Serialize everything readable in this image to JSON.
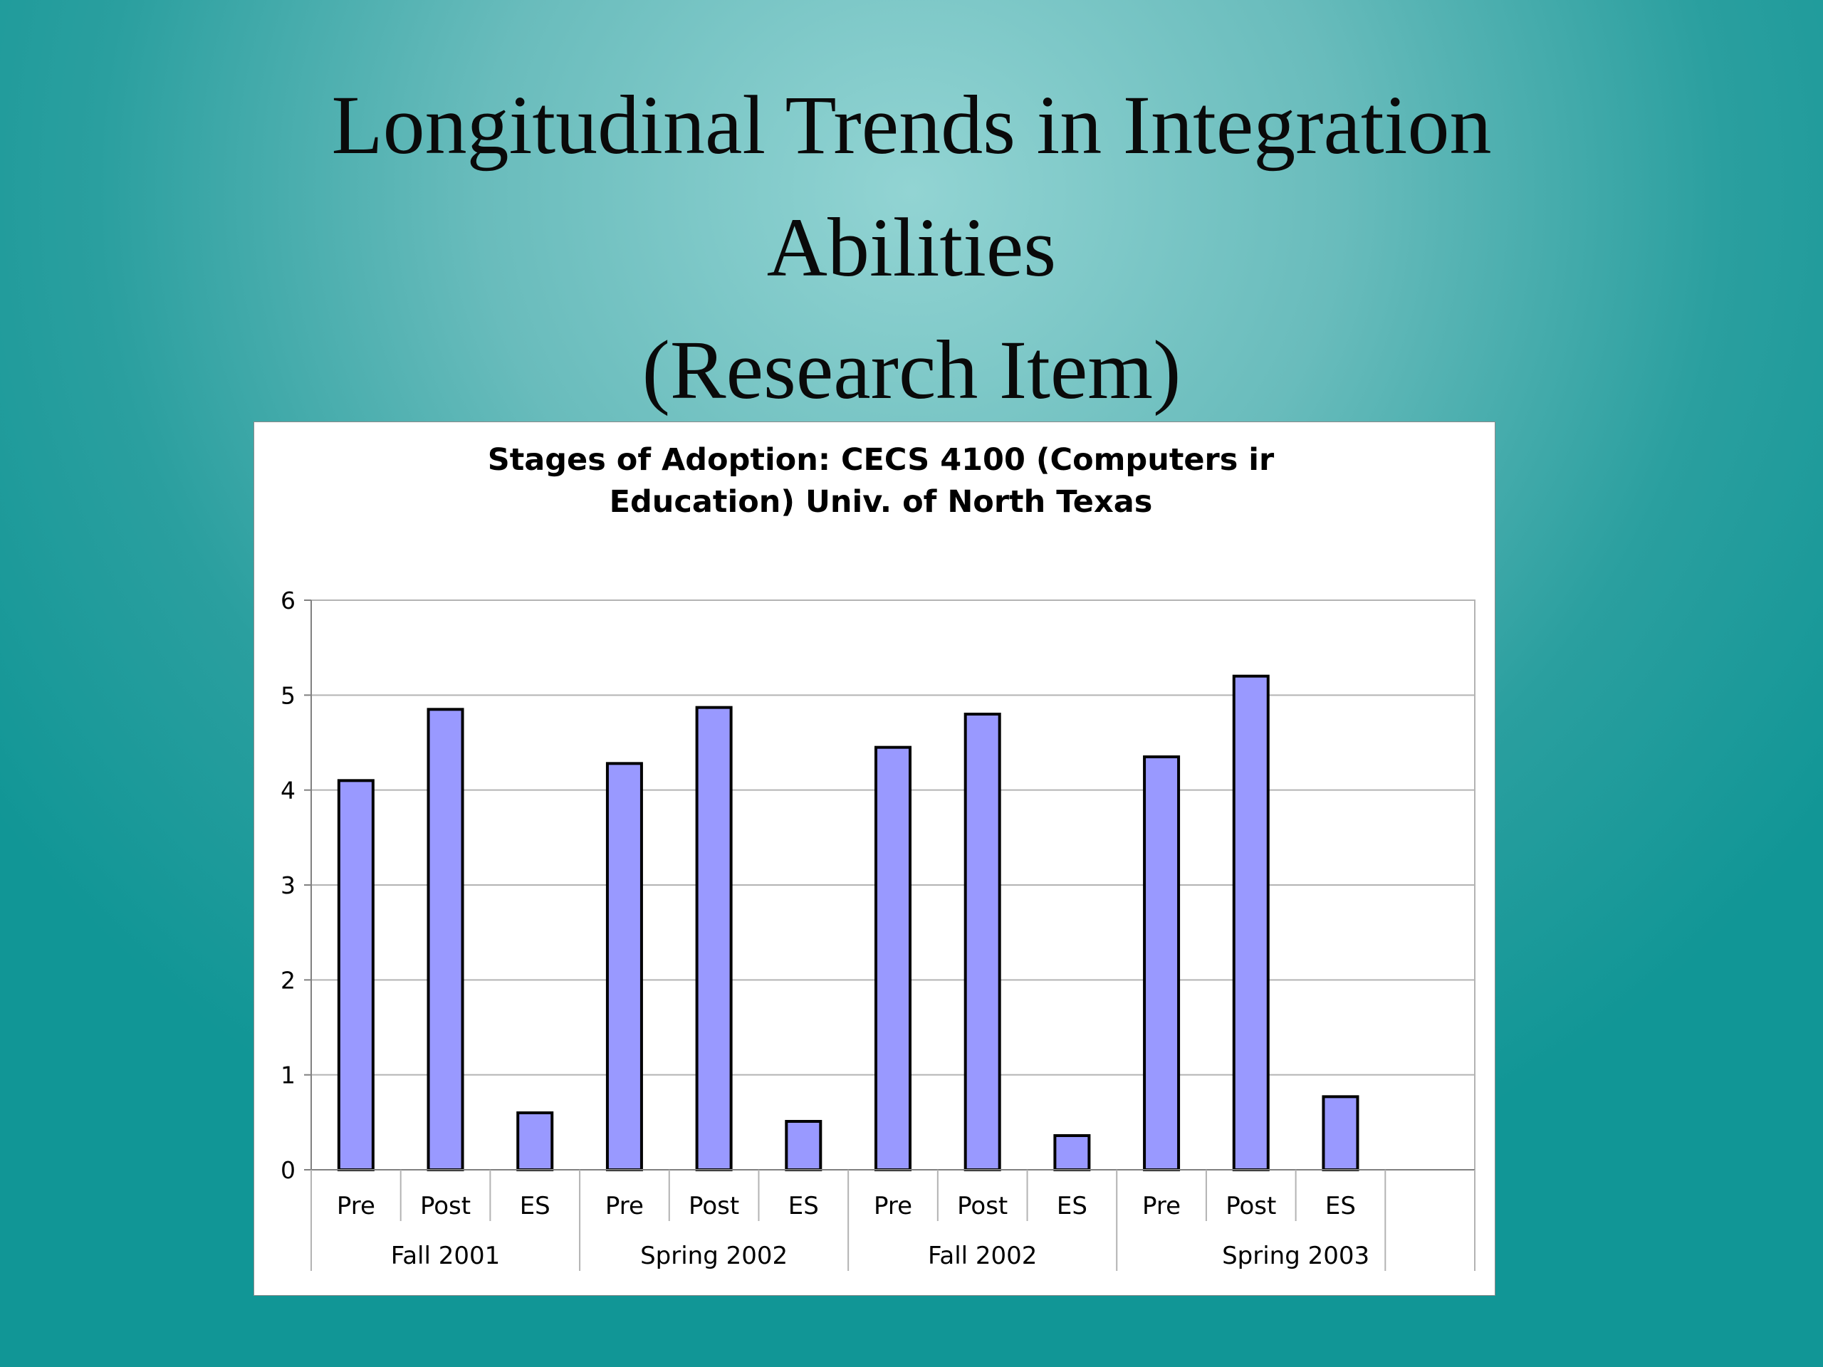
{
  "slide": {
    "title_line1": "Longitudinal Trends in Integration",
    "title_line2": "Abilities",
    "title_line3": "(Research Item)"
  },
  "colors": {
    "bar": "#9999ff",
    "bar_stroke": "#000000",
    "grid": "#b3b3b3",
    "axis": "#808080"
  },
  "chart_data": {
    "type": "bar",
    "title_line1": "Stages of Adoption: CECS 4100 (Computers ir",
    "title_line2": "Education) Univ. of North Texas",
    "xlabel": "",
    "ylabel": "",
    "ylim": [
      0,
      6
    ],
    "yticks": [
      0,
      1,
      2,
      3,
      4,
      5,
      6
    ],
    "grid": true,
    "legend": false,
    "groups": [
      "Fall 2001",
      "Spring 2002",
      "Fall 2002",
      "Spring 2003"
    ],
    "subcategories": [
      "Pre",
      "Post",
      "ES"
    ],
    "values": [
      [
        4.1,
        4.85,
        0.6
      ],
      [
        4.28,
        4.87,
        0.51
      ],
      [
        4.45,
        4.8,
        0.36
      ],
      [
        4.35,
        5.2,
        0.77
      ]
    ]
  }
}
